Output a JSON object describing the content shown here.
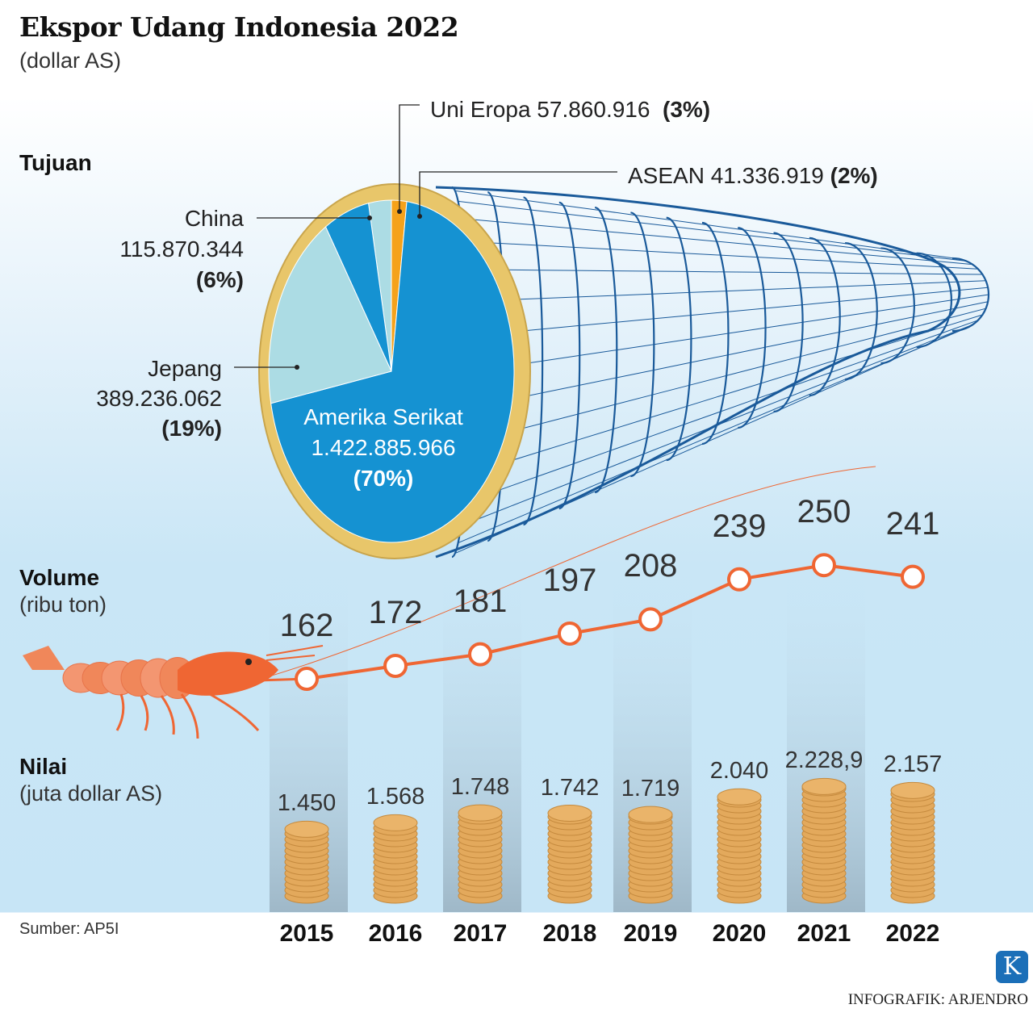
{
  "header": {
    "title": "Ekspor Udang Indonesia 2022",
    "subtitle": "(dollar AS)"
  },
  "sections": {
    "tujuan": "Tujuan",
    "volume": "Volume",
    "volume_unit": "(ribu ton)",
    "nilai": "Nilai",
    "nilai_unit": "(juta dollar AS)"
  },
  "footer": {
    "source": "Sumber: AP5I",
    "credit": "INFOGRAFIK: ARJENDRO",
    "logo_letter": "K"
  },
  "colors": {
    "accent_orange": "#ef6633",
    "pie_blue": "#1592d2",
    "pie_light": "#acdce4",
    "pie_orange": "#f5a21b",
    "rim_gold": "#e8c66a",
    "net_blue": "#1a5a9a",
    "coin": "#e3a95c"
  },
  "chart_data": [
    {
      "type": "pie",
      "title": "Tujuan",
      "slices": [
        {
          "name": "Uni Eropa",
          "value_text": "57.860.916",
          "pct_text": "(3%)",
          "value": 57860916,
          "percent": 3,
          "color": "#acdce4"
        },
        {
          "name": "ASEAN",
          "value_text": "41.336.919",
          "pct_text": "(2%)",
          "value": 41336919,
          "percent": 2,
          "color": "#f5a21b"
        },
        {
          "name": "Amerika Serikat",
          "value_text": "1.422.885.966",
          "pct_text": "(70%)",
          "value": 1422885966,
          "percent": 70,
          "color": "#1592d2"
        },
        {
          "name": "Jepang",
          "value_text": "389.236.062",
          "pct_text": "(19%)",
          "value": 389236062,
          "percent": 19,
          "color": "#acdce4"
        },
        {
          "name": "China",
          "value_text": "115.870.344",
          "pct_text": "(6%)",
          "value": 115870344,
          "percent": 6,
          "color": "#1592d2"
        }
      ]
    },
    {
      "type": "line",
      "title": "Volume",
      "ylabel": "(ribu ton)",
      "categories": [
        "2015",
        "2016",
        "2017",
        "2018",
        "2019",
        "2020",
        "2021",
        "2022"
      ],
      "values": [
        162,
        172,
        181,
        197,
        208,
        239,
        250,
        241
      ]
    },
    {
      "type": "bar",
      "title": "Nilai",
      "ylabel": "(juta dollar AS)",
      "categories": [
        "2015",
        "2016",
        "2017",
        "2018",
        "2019",
        "2020",
        "2021",
        "2022"
      ],
      "values": [
        1450,
        1568,
        1748,
        1742,
        1719,
        2040,
        2228.9,
        2157
      ],
      "labels": [
        "1.450",
        "1.568",
        "1.748",
        "1.742",
        "1.719",
        "2.040",
        "2.228,9",
        "2.157"
      ]
    }
  ]
}
